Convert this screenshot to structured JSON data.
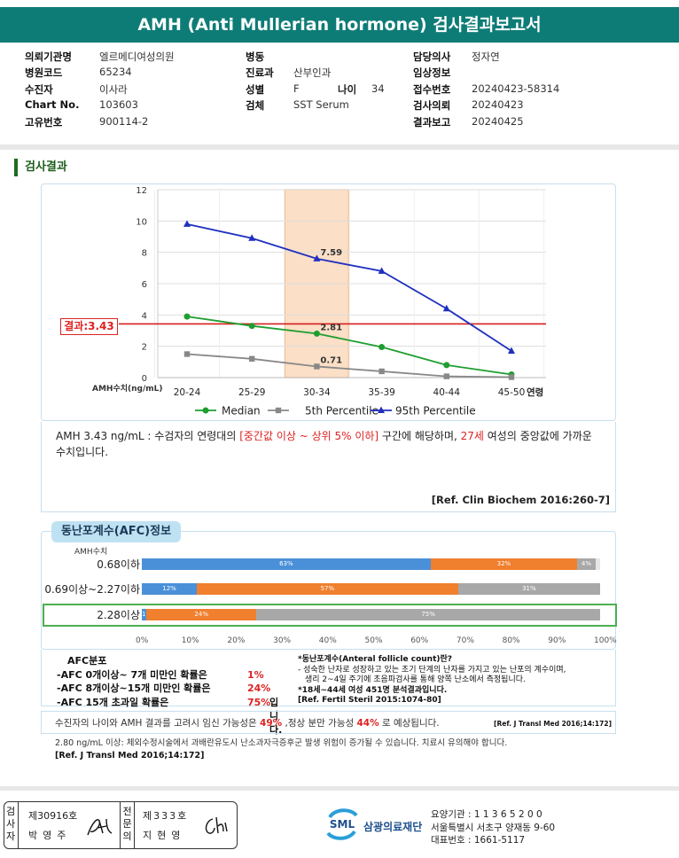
{
  "title": "AMH (Anti Mullerian hormone) 검사결과보고서",
  "patient_info": {
    "col1": [
      {
        "label": "의뢰기관명",
        "value": "엘르메디여성의원"
      },
      {
        "label": "병원코드",
        "value": "65234"
      },
      {
        "label": "수진자",
        "value": "이사라"
      },
      {
        "label": "Chart No.",
        "value": "103603"
      },
      {
        "label": "고유번호",
        "value": "900114-2"
      }
    ],
    "col2": [
      {
        "label": "병동",
        "value": ""
      },
      {
        "label": "진료과",
        "value": "산부인과"
      },
      {
        "label": "성별",
        "value": "F"
      },
      {
        "label": "검체",
        "value": "SST Serum"
      }
    ],
    "age_label": "나이",
    "age_value": "34",
    "col3": [
      {
        "label": "담당의사",
        "value": "정자연"
      },
      {
        "label": "임상정보",
        "value": ""
      },
      {
        "label": "접수번호",
        "value": "20240423-58314"
      },
      {
        "label": "검사의뢰",
        "value": "20240423"
      },
      {
        "label": "결과보고",
        "value": "20240425"
      }
    ]
  },
  "section_title": "검사결과",
  "result_label": "결과:3.43",
  "chart_data": {
    "type": "line",
    "categories": [
      "20-24",
      "25-29",
      "30-34",
      "35-39",
      "40-44",
      "45-50"
    ],
    "x_unit_label": "연령",
    "ylabel": "AMH수치(ng/mL)",
    "ylim": [
      0,
      12
    ],
    "yticks": [
      0,
      2,
      4,
      6,
      8,
      10,
      12
    ],
    "grid": true,
    "legend_position": "bottom",
    "highlight_category": "30-34",
    "result_value": 3.43,
    "series": [
      {
        "name": "Median",
        "color": "#1e9e2f",
        "marker": "circle",
        "values": [
          3.9,
          3.3,
          2.81,
          1.95,
          0.8,
          0.2
        ]
      },
      {
        "name": "5th Percentile",
        "color": "#888888",
        "marker": "square",
        "values": [
          1.5,
          1.2,
          0.71,
          0.4,
          0.08,
          0.03
        ]
      },
      {
        "name": "95th Percentile",
        "color": "#1f2fbf",
        "marker": "triangle",
        "values": [
          9.8,
          8.9,
          7.59,
          6.8,
          4.4,
          1.7
        ]
      }
    ],
    "data_labels": [
      {
        "series": 2,
        "index": 2,
        "text": "7.59"
      },
      {
        "series": 0,
        "index": 2,
        "text": "2.81"
      },
      {
        "series": 1,
        "index": 2,
        "text": "0.71"
      }
    ]
  },
  "interpretation": {
    "part1": "AMH  3.43 ng/mL : 수검자의 연령대의 ",
    "highlight1": "[중간값 이상 ~ 상위 5% 이하]",
    "part2": " 구간에 해당하며, ",
    "highlight2": "27세",
    "part3": " 여성의 중앙값에 가까운 수치입니다.",
    "ref": "[Ref. Clin Biochem 2016:260-7]"
  },
  "afc": {
    "tab_title": "동난포계수(AFC)정보",
    "unit_label": "AMH수치",
    "rows": [
      {
        "label": "0.68이하",
        "segments": [
          {
            "pct": 63,
            "label": "63%",
            "color": "#4a90d9"
          },
          {
            "pct": 32,
            "label": "32%",
            "color": "#f07f2e"
          },
          {
            "pct": 4,
            "label": "4%",
            "color": "#a8a8a8"
          }
        ]
      },
      {
        "label": "0.69이상~2.27이하",
        "segments": [
          {
            "pct": 12,
            "label": "12%",
            "color": "#4a90d9"
          },
          {
            "pct": 57,
            "label": "57%",
            "color": "#f07f2e"
          },
          {
            "pct": 31,
            "label": "31%",
            "color": "#a8a8a8"
          }
        ]
      },
      {
        "label": "2.28이상",
        "segments": [
          {
            "pct": 1,
            "label": "1%",
            "color": "#4a90d9"
          },
          {
            "pct": 24,
            "label": "24%",
            "color": "#f07f2e"
          },
          {
            "pct": 75,
            "label": "75%",
            "color": "#a8a8a8"
          }
        ]
      }
    ],
    "axis_ticks": [
      "0%",
      "10%",
      "20%",
      "30%",
      "40%",
      "50%",
      "60%",
      "70%",
      "80%",
      "90%",
      "100%"
    ],
    "dist_title": "AFC분포",
    "dist_lines": [
      {
        "text": "-AFC  0개이상~ 7개 미만인 확률은",
        "value": "1%",
        "suffix": ""
      },
      {
        "text": "-AFC  8개이상~15개 미만인 확률은",
        "value": "24%",
        "suffix": ""
      },
      {
        "text": "-AFC  15개 초과일 확률은",
        "value": "75%",
        "suffix": " 입니다."
      }
    ],
    "definition_title": "*동난포계수(Anteral follicle count)란?",
    "definition_body1": "- 성숙한 난자로 성장하고 있는 초기 단계의 난자를 가지고 있는 난포의 계수이며,",
    "definition_body2": "생리 2~4일 주기에 초음파검사를 통해 양쪽 난소에서 측정됩니다.",
    "definition_stat": "*18세~44세 여성 451명 분석결과입니다.",
    "definition_ref": "[Ref. Fertil Steril 2015:1074-80]"
  },
  "pregnancy": {
    "part1": "수진자의 나이와 AMH 결과를 고려시 임신 가능성은 ",
    "value1": "49%",
    "part2": " ,정상 분만 가능성 ",
    "value2": "44%",
    "part3": " 로 예상됩니다.",
    "ref": "[Ref. J Transl Med 2016;14:172]"
  },
  "bottom_note": {
    "text": "2.80  ng/mL  이상: 체외수정시술에서 과배란유도시 난소과자극증후군 발생 위험이 증가될 수 있습니다. 치료시 유의해야 합니다.",
    "ref": "[Ref. J Transl Med 2016;14:172]"
  },
  "signatures": [
    {
      "head": "검\n사\n자",
      "number": "제30916호",
      "name": "박영주"
    },
    {
      "head": "전\n문\n의",
      "number": "제333호",
      "name": "지현영"
    }
  ],
  "lab": {
    "name": "삼광의료재단",
    "logo_text": "SML",
    "line1": "요양기관 : 1 1 3 6 5 2 0 0",
    "line2": "서울특별시 서초구 양재동 9-60",
    "line3": "대표번호 : 1661-5117"
  }
}
